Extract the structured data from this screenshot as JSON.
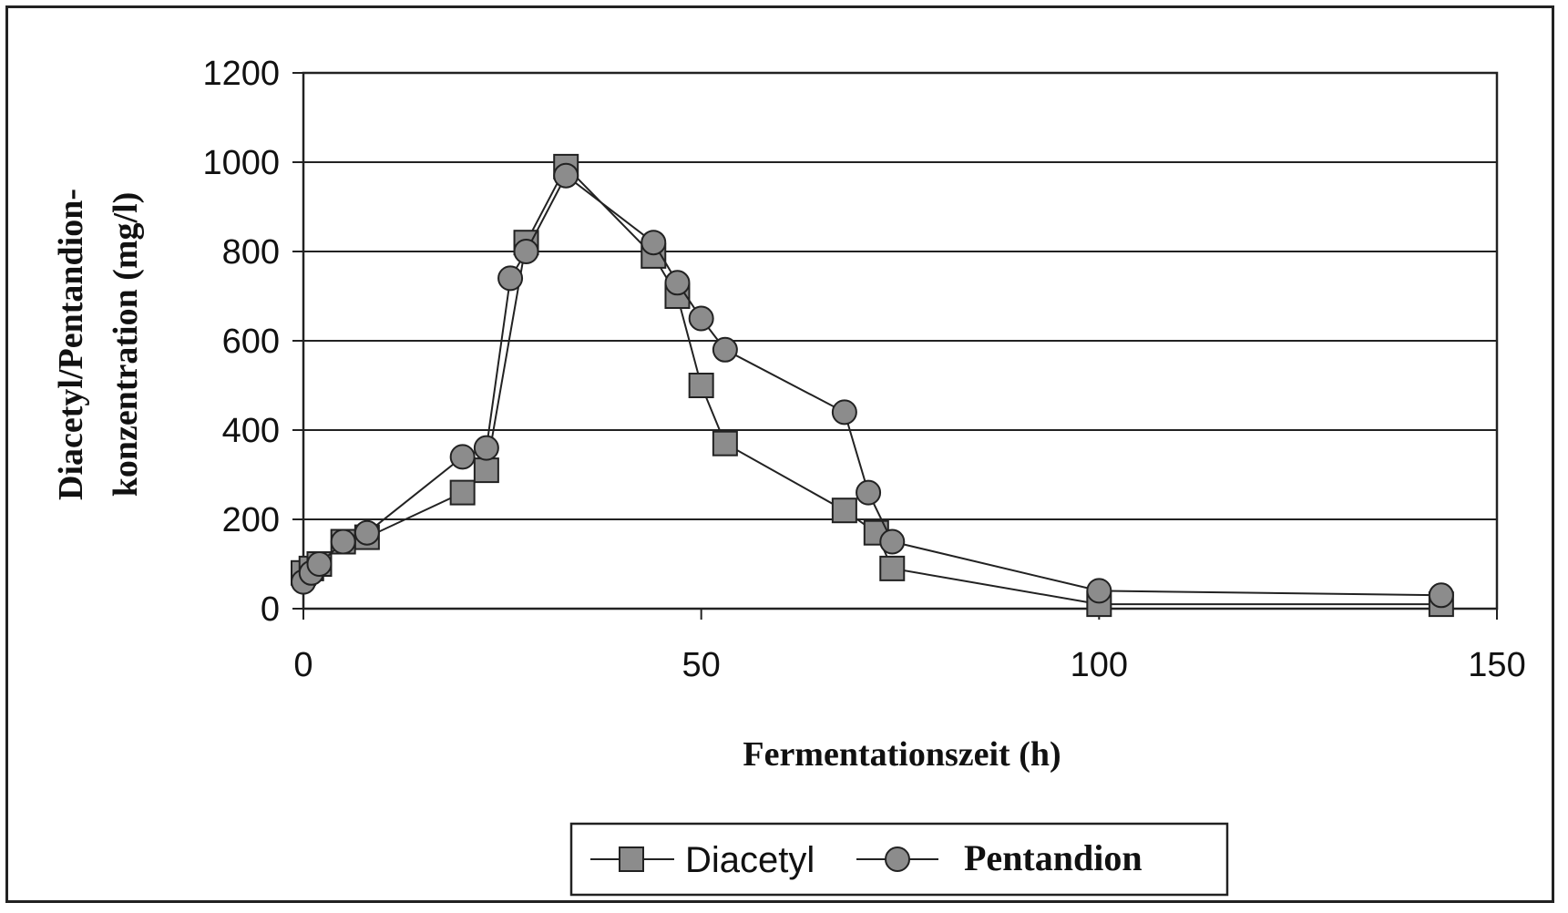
{
  "chart_data": {
    "type": "line",
    "xlabel": "Fermentationszeit (h)",
    "ylabel_line1": "Diacetyl/Pentandion-",
    "ylabel_line2": "konzentration (mg/l)",
    "xlim": [
      0,
      150
    ],
    "ylim": [
      0,
      1200
    ],
    "x_ticks": [
      0,
      50,
      100,
      150
    ],
    "y_ticks": [
      0,
      200,
      400,
      600,
      800,
      1000,
      1200
    ],
    "grid": "horizontal",
    "legend_position": "bottom",
    "colors": {
      "line": "#222222",
      "marker_fill": "#8c8c8c",
      "marker_edge": "#222222"
    },
    "series": [
      {
        "name": "Diacetyl",
        "marker": "square",
        "x": [
          0,
          1,
          2,
          5,
          8,
          20,
          23,
          28,
          33,
          44,
          47,
          50,
          53,
          68,
          72,
          74,
          100,
          143
        ],
        "y": [
          80,
          90,
          100,
          150,
          160,
          260,
          310,
          820,
          990,
          790,
          700,
          500,
          370,
          220,
          170,
          90,
          10,
          10
        ]
      },
      {
        "name": "Pentandion",
        "marker": "circle",
        "x": [
          0,
          1,
          2,
          5,
          8,
          20,
          23,
          26,
          28,
          33,
          44,
          47,
          50,
          53,
          68,
          71,
          74,
          100,
          143
        ],
        "y": [
          60,
          80,
          100,
          150,
          170,
          340,
          360,
          740,
          800,
          970,
          820,
          730,
          650,
          580,
          440,
          260,
          150,
          40,
          30
        ]
      }
    ]
  }
}
